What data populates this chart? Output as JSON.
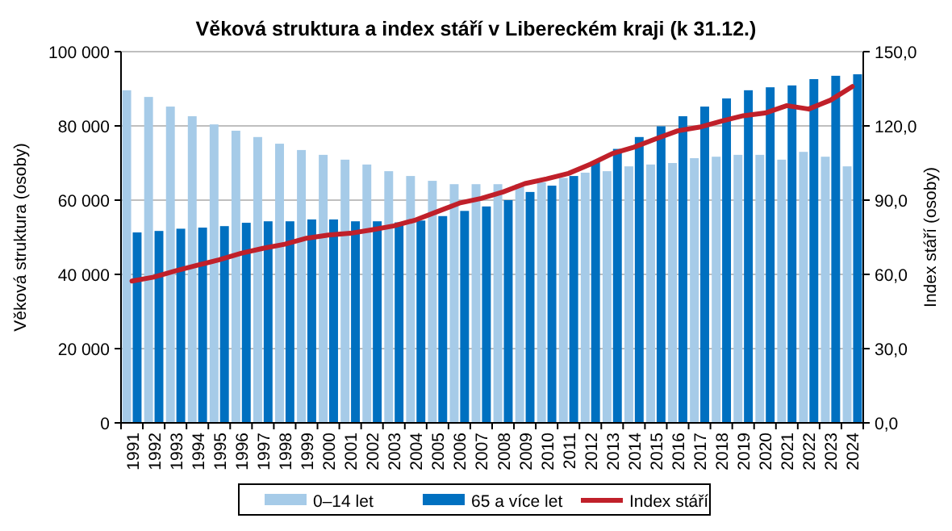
{
  "chart_data": {
    "type": "bar",
    "title": "Věková struktura a index stáří v Libereckém kraji (k 31.12.)",
    "ylabel": "Věková struktura (osoby)",
    "y2label": "Index stáří (osoby)",
    "categories": [
      "1991",
      "1992",
      "1993",
      "1994",
      "1995",
      "1996",
      "1997",
      "1998",
      "1999",
      "2000",
      "2001",
      "2002",
      "2003",
      "2004",
      "2005",
      "2006",
      "2007",
      "2008",
      "2009",
      "2010",
      "2011",
      "2012",
      "2013",
      "2014",
      "2015",
      "2016",
      "2017",
      "2018",
      "2019",
      "2020",
      "2021",
      "2022",
      "2023",
      "2024"
    ],
    "series": [
      {
        "name": "0–14 let",
        "color": "#a6cbe8",
        "values": [
          89600,
          87800,
          85200,
          82600,
          80400,
          78700,
          77000,
          75200,
          73500,
          72200,
          70900,
          69600,
          67800,
          66500,
          65200,
          64300,
          64300,
          64300,
          64300,
          64800,
          66000,
          67400,
          67800,
          69100,
          69600,
          70000,
          71300,
          71700,
          72200,
          72200,
          70900,
          73000,
          71700,
          69100
        ]
      },
      {
        "name": "65 a více let",
        "color": "#0070c0",
        "values": [
          51300,
          51700,
          52300,
          52600,
          53000,
          53900,
          54300,
          54300,
          54800,
          54800,
          54300,
          54300,
          54000,
          54500,
          55700,
          57100,
          58300,
          60000,
          62200,
          63900,
          66500,
          70400,
          73800,
          77000,
          79900,
          82600,
          85200,
          87400,
          89600,
          90400,
          90900,
          92600,
          93500,
          93900
        ]
      },
      {
        "name": "Index stáří",
        "type": "line",
        "axis": "y2",
        "color": "#c0202a",
        "values": [
          57.3,
          58.9,
          61.4,
          63.7,
          65.9,
          68.5,
          70.5,
          72.2,
          74.6,
          75.9,
          76.6,
          78.0,
          79.6,
          82.0,
          85.4,
          88.8,
          90.7,
          93.3,
          96.7,
          98.6,
          100.8,
          104.5,
          108.8,
          111.4,
          114.8,
          118.0,
          119.5,
          121.9,
          124.1,
          125.2,
          128.2,
          126.8,
          130.4,
          135.9
        ]
      }
    ],
    "ylim": [
      0,
      100000
    ],
    "yticks": [
      {
        "value": 0,
        "label": "0"
      },
      {
        "value": 20000,
        "label": "20 000"
      },
      {
        "value": 40000,
        "label": "40 000"
      },
      {
        "value": 60000,
        "label": "60 000"
      },
      {
        "value": 80000,
        "label": "80 000"
      },
      {
        "value": 100000,
        "label": "100 000"
      }
    ],
    "y2lim": [
      0,
      150
    ],
    "y2ticks": [
      {
        "value": 0,
        "label": "0,0"
      },
      {
        "value": 30,
        "label": "30,0"
      },
      {
        "value": 60,
        "label": "60,0"
      },
      {
        "value": 90,
        "label": "90,0"
      },
      {
        "value": 120,
        "label": "120,0"
      },
      {
        "value": 150,
        "label": "150,0"
      }
    ],
    "grid": "y",
    "legend": "bottom"
  }
}
